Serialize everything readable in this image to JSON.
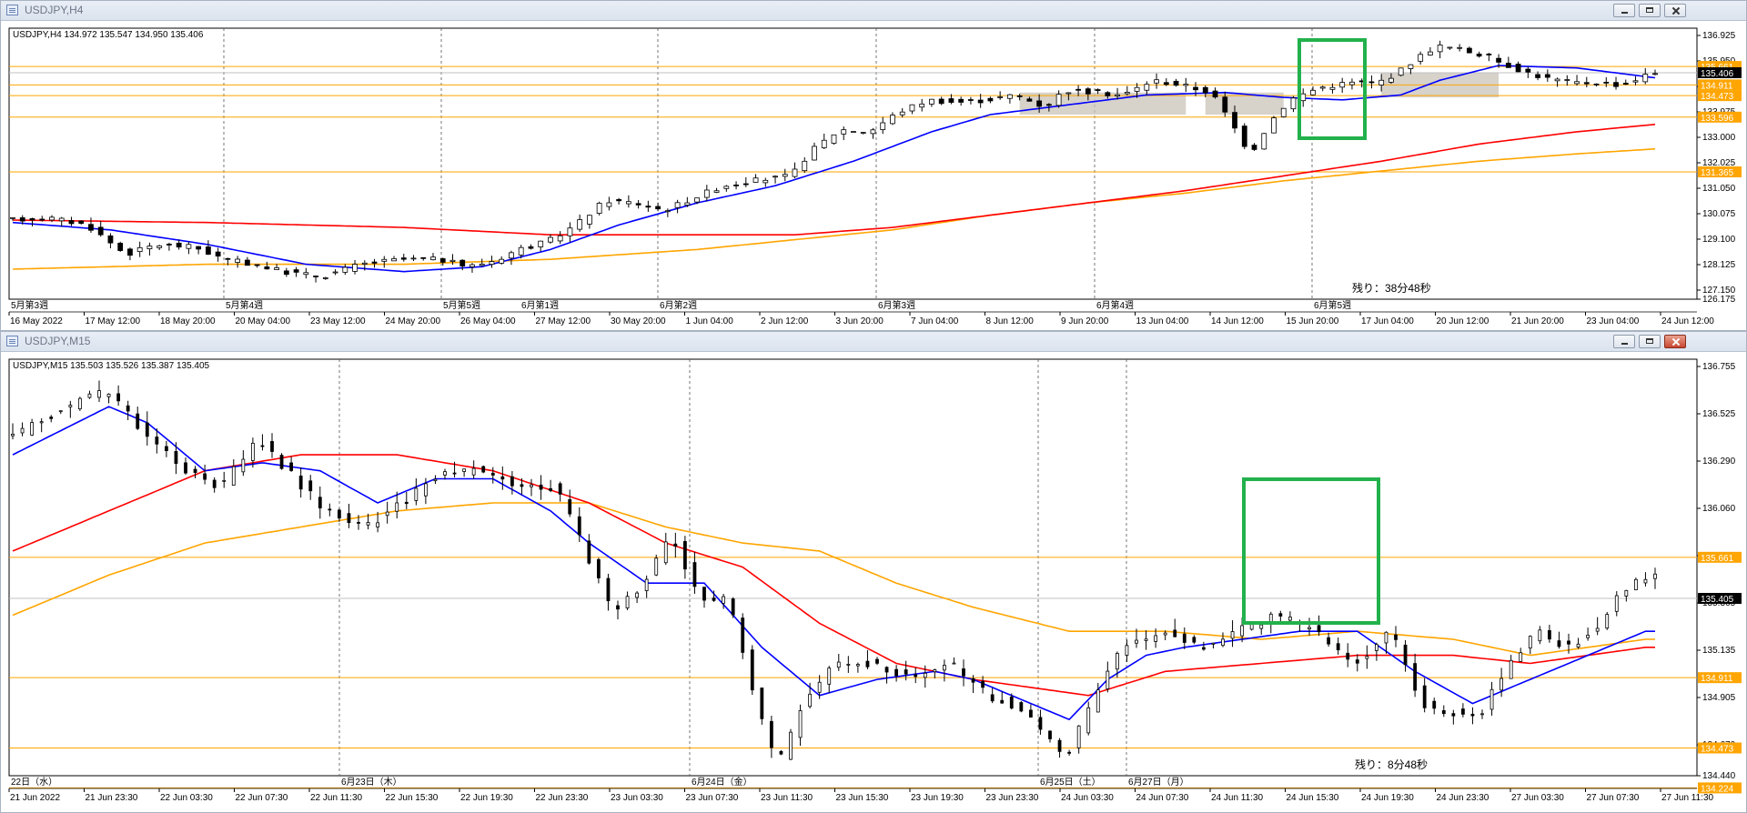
{
  "windows": [
    {
      "title": "USDJPY,H4",
      "info": "USDJPY,H4  134.972 135.547 134.950 135.406",
      "timer": "残り：38分48秒",
      "y_ticks": [
        "136.925",
        "135.950",
        "134.975",
        "133.975",
        "133.000",
        "132.025",
        "131.050",
        "130.075",
        "129.100",
        "128.125",
        "127.150",
        "126.175"
      ],
      "price_tags": [
        {
          "label": "135.661",
          "color": "#ffa500"
        },
        {
          "label": "135.406",
          "color": "#000000"
        },
        {
          "label": "134.911",
          "color": "#ffa500"
        },
        {
          "label": "134.473",
          "color": "#ffa500"
        },
        {
          "label": "133.596",
          "color": "#ffa500"
        },
        {
          "label": "131.365",
          "color": "#ffa500"
        }
      ],
      "week_labels": [
        "5月第3週",
        "5月第4週",
        "5月第5週",
        "6月第1週",
        "6月第2週",
        "6月第3週",
        "6月第4週",
        "6月第5週"
      ],
      "time_labels": [
        "16 May 2022",
        "17 May 12:00",
        "18 May 20:00",
        "20 May 04:00",
        "23 May 12:00",
        "24 May 20:00",
        "26 May 04:00",
        "27 May 12:00",
        "30 May 20:00",
        "1 Jun 04:00",
        "2 Jun 12:00",
        "3 Jun 20:00",
        "7 Jun 04:00",
        "8 Jun 12:00",
        "9 Jun 20:00",
        "13 Jun 04:00",
        "14 Jun 12:00",
        "15 Jun 20:00",
        "17 Jun 04:00",
        "20 Jun 12:00",
        "21 Jun 20:00",
        "23 Jun 04:00",
        "24 Jun 12:00"
      ]
    },
    {
      "title": "USDJPY,M15",
      "info": "USDJPY,M15  135.503 135.526 135.387 135.405",
      "timer": "残り：8分48秒",
      "y_ticks": [
        "136.755",
        "136.525",
        "136.290",
        "136.060",
        "135.595",
        "135.365",
        "135.135",
        "134.905",
        "134.670",
        "134.440"
      ],
      "price_tags": [
        {
          "label": "135.661",
          "color": "#ffa500"
        },
        {
          "label": "135.405",
          "color": "#000000"
        },
        {
          "label": "134.911",
          "color": "#ffa500"
        },
        {
          "label": "134.473",
          "color": "#ffa500"
        },
        {
          "label": "134.224",
          "color": "#ffa500"
        }
      ],
      "day_labels": [
        "22日（水）",
        "6月23日（木）",
        "6月24日（金）",
        "6月25日（土）",
        "6月27日（月）"
      ],
      "time_labels": [
        "21 Jun 2022",
        "21 Jun 23:30",
        "22 Jun 03:30",
        "22 Jun 07:30",
        "22 Jun 11:30",
        "22 Jun 15:30",
        "22 Jun 19:30",
        "22 Jun 23:30",
        "23 Jun 03:30",
        "23 Jun 07:30",
        "23 Jun 11:30",
        "23 Jun 15:30",
        "23 Jun 19:30",
        "23 Jun 23:30",
        "24 Jun 03:30",
        "24 Jun 07:30",
        "24 Jun 11:30",
        "24 Jun 15:30",
        "24 Jun 19:30",
        "24 Jun 23:30",
        "27 Jun 03:30",
        "27 Jun 07:30",
        "27 Jun 11:30"
      ]
    }
  ],
  "chart_data": [
    {
      "type": "candlestick",
      "symbol": "USDJPY",
      "timeframe": "H4",
      "last": {
        "open": 134.972,
        "high": 135.547,
        "low": 134.95,
        "close": 135.406
      },
      "ylim": [
        126.175,
        136.925
      ],
      "horizontal_levels": [
        135.661,
        134.911,
        134.473,
        133.596,
        131.365
      ],
      "series": [
        {
          "name": "price",
          "color": "#000000"
        },
        {
          "name": "ma-blue",
          "color": "#0000ff"
        },
        {
          "name": "ma-red",
          "color": "#ff0000"
        },
        {
          "name": "ma-orange",
          "color": "#ffa500"
        }
      ],
      "price_path": [
        [
          0,
          129.4
        ],
        [
          4,
          129.5
        ],
        [
          8,
          129.2
        ],
        [
          12,
          128.0
        ],
        [
          15,
          128.4
        ],
        [
          19,
          128.3
        ],
        [
          22,
          127.8
        ],
        [
          25,
          127.6
        ],
        [
          28,
          127.3
        ],
        [
          32,
          127.1
        ],
        [
          36,
          127.6
        ],
        [
          40,
          127.8
        ],
        [
          44,
          127.8
        ],
        [
          47,
          127.5
        ],
        [
          50,
          127.8
        ],
        [
          52,
          128.2
        ],
        [
          55,
          128.5
        ],
        [
          58,
          129.2
        ],
        [
          61,
          130.2
        ],
        [
          64,
          130.1
        ],
        [
          67,
          129.8
        ],
        [
          70,
          130.3
        ],
        [
          73,
          130.8
        ],
        [
          76,
          131.0
        ],
        [
          80,
          131.2
        ],
        [
          82,
          132.2
        ],
        [
          85,
          133.1
        ],
        [
          88,
          133.0
        ],
        [
          91,
          133.8
        ],
        [
          94,
          134.3
        ],
        [
          97,
          134.2
        ],
        [
          100,
          134.3
        ],
        [
          103,
          134.5
        ],
        [
          106,
          134.0
        ],
        [
          108,
          134.7
        ],
        [
          111,
          134.6
        ],
        [
          114,
          134.5
        ],
        [
          117,
          135.1
        ],
        [
          120,
          134.9
        ],
        [
          123,
          134.6
        ],
        [
          125,
          133.4
        ],
        [
          127,
          132.1
        ],
        [
          129,
          133.4
        ],
        [
          131,
          134.3
        ],
        [
          134,
          134.8
        ],
        [
          137,
          135.0
        ],
        [
          140,
          135.0
        ],
        [
          142,
          135.4
        ],
        [
          144,
          136.0
        ],
        [
          146,
          136.5
        ],
        [
          148,
          136.4
        ],
        [
          151,
          136.1
        ],
        [
          154,
          135.6
        ],
        [
          157,
          135.2
        ],
        [
          160,
          135.0
        ],
        [
          163,
          135.0
        ],
        [
          165,
          134.9
        ],
        [
          168,
          135.4
        ]
      ],
      "ma_blue": [
        [
          0,
          129.3
        ],
        [
          10,
          129.0
        ],
        [
          20,
          128.4
        ],
        [
          30,
          127.6
        ],
        [
          40,
          127.3
        ],
        [
          48,
          127.5
        ],
        [
          55,
          128.2
        ],
        [
          62,
          129.2
        ],
        [
          70,
          130.1
        ],
        [
          78,
          130.8
        ],
        [
          86,
          131.8
        ],
        [
          94,
          133.0
        ],
        [
          100,
          133.7
        ],
        [
          108,
          134.1
        ],
        [
          116,
          134.5
        ],
        [
          124,
          134.6
        ],
        [
          130,
          134.4
        ],
        [
          136,
          134.3
        ],
        [
          142,
          134.5
        ],
        [
          146,
          135.1
        ],
        [
          152,
          135.7
        ],
        [
          160,
          135.6
        ],
        [
          168,
          135.2
        ]
      ],
      "ma_red": [
        [
          0,
          129.4
        ],
        [
          20,
          129.3
        ],
        [
          40,
          129.1
        ],
        [
          55,
          128.8
        ],
        [
          70,
          128.8
        ],
        [
          80,
          128.8
        ],
        [
          90,
          129.1
        ],
        [
          100,
          129.6
        ],
        [
          110,
          130.1
        ],
        [
          120,
          130.6
        ],
        [
          130,
          131.2
        ],
        [
          140,
          131.8
        ],
        [
          150,
          132.5
        ],
        [
          160,
          133.0
        ],
        [
          168,
          133.3
        ]
      ],
      "ma_orange": [
        [
          0,
          127.4
        ],
        [
          20,
          127.6
        ],
        [
          40,
          127.6
        ],
        [
          55,
          127.8
        ],
        [
          70,
          128.2
        ],
        [
          80,
          128.6
        ],
        [
          90,
          129.0
        ],
        [
          100,
          129.6
        ],
        [
          110,
          130.1
        ],
        [
          120,
          130.5
        ],
        [
          130,
          131.0
        ],
        [
          140,
          131.4
        ],
        [
          150,
          131.8
        ],
        [
          160,
          132.1
        ],
        [
          168,
          132.3
        ]
      ]
    },
    {
      "type": "candlestick",
      "symbol": "USDJPY",
      "timeframe": "M15",
      "last": {
        "open": 135.503,
        "high": 135.526,
        "low": 135.387,
        "close": 135.405
      },
      "ylim": [
        134.3,
        136.85
      ],
      "horizontal_levels": [
        135.661,
        134.911,
        134.473,
        134.224
      ],
      "series": [
        {
          "name": "price",
          "color": "#000000"
        },
        {
          "name": "ma-blue",
          "color": "#0000ff"
        },
        {
          "name": "ma-red",
          "color": "#ff0000"
        },
        {
          "name": "ma-orange",
          "color": "#ffa500"
        }
      ],
      "price_path": [
        [
          0,
          136.4
        ],
        [
          6,
          136.6
        ],
        [
          10,
          136.7
        ],
        [
          14,
          136.45
        ],
        [
          18,
          136.2
        ],
        [
          22,
          136.1
        ],
        [
          26,
          136.4
        ],
        [
          29,
          136.2
        ],
        [
          33,
          135.95
        ],
        [
          37,
          135.85
        ],
        [
          41,
          136.0
        ],
        [
          45,
          136.2
        ],
        [
          49,
          136.2
        ],
        [
          53,
          136.1
        ],
        [
          57,
          136.1
        ],
        [
          60,
          135.7
        ],
        [
          63,
          135.3
        ],
        [
          66,
          135.5
        ],
        [
          69,
          135.8
        ],
        [
          72,
          135.4
        ],
        [
          75,
          135.4
        ],
        [
          78,
          134.7
        ],
        [
          80,
          134.35
        ],
        [
          83,
          134.8
        ],
        [
          86,
          135.0
        ],
        [
          90,
          135.0
        ],
        [
          94,
          134.9
        ],
        [
          98,
          135.0
        ],
        [
          102,
          134.8
        ],
        [
          106,
          134.7
        ],
        [
          110,
          134.4
        ],
        [
          113,
          134.8
        ],
        [
          116,
          135.1
        ],
        [
          120,
          135.2
        ],
        [
          124,
          135.1
        ],
        [
          128,
          135.2
        ],
        [
          132,
          135.3
        ],
        [
          136,
          135.2
        ],
        [
          140,
          135.0
        ],
        [
          144,
          135.2
        ],
        [
          147,
          134.75
        ],
        [
          150,
          134.7
        ],
        [
          153,
          134.65
        ],
        [
          156,
          135.0
        ],
        [
          159,
          135.2
        ],
        [
          162,
          135.1
        ],
        [
          165,
          135.2
        ],
        [
          168,
          135.45
        ],
        [
          171,
          135.55
        ]
      ],
      "ma_blue": [
        [
          0,
          136.3
        ],
        [
          10,
          136.6
        ],
        [
          14,
          136.5
        ],
        [
          20,
          136.2
        ],
        [
          26,
          136.25
        ],
        [
          32,
          136.2
        ],
        [
          38,
          136.0
        ],
        [
          44,
          136.15
        ],
        [
          50,
          136.15
        ],
        [
          56,
          135.95
        ],
        [
          60,
          135.75
        ],
        [
          66,
          135.5
        ],
        [
          72,
          135.5
        ],
        [
          78,
          135.1
        ],
        [
          84,
          134.8
        ],
        [
          90,
          134.9
        ],
        [
          96,
          134.95
        ],
        [
          100,
          134.9
        ],
        [
          104,
          134.8
        ],
        [
          110,
          134.65
        ],
        [
          114,
          134.9
        ],
        [
          118,
          135.05
        ],
        [
          122,
          135.1
        ],
        [
          128,
          135.15
        ],
        [
          134,
          135.2
        ],
        [
          140,
          135.2
        ],
        [
          146,
          134.95
        ],
        [
          152,
          134.75
        ],
        [
          158,
          134.9
        ],
        [
          164,
          135.05
        ],
        [
          170,
          135.2
        ]
      ],
      "ma_red": [
        [
          0,
          135.7
        ],
        [
          10,
          135.95
        ],
        [
          20,
          136.2
        ],
        [
          30,
          136.3
        ],
        [
          40,
          136.3
        ],
        [
          50,
          136.2
        ],
        [
          60,
          136.0
        ],
        [
          68,
          135.75
        ],
        [
          76,
          135.6
        ],
        [
          84,
          135.25
        ],
        [
          92,
          135.0
        ],
        [
          100,
          134.9
        ],
        [
          106,
          134.85
        ],
        [
          112,
          134.8
        ],
        [
          120,
          134.95
        ],
        [
          130,
          135.0
        ],
        [
          140,
          135.05
        ],
        [
          150,
          135.05
        ],
        [
          158,
          135.0
        ],
        [
          164,
          135.05
        ],
        [
          170,
          135.1
        ]
      ],
      "ma_orange": [
        [
          0,
          135.3
        ],
        [
          10,
          135.55
        ],
        [
          20,
          135.75
        ],
        [
          30,
          135.85
        ],
        [
          40,
          135.95
        ],
        [
          50,
          136.0
        ],
        [
          60,
          136.0
        ],
        [
          68,
          135.85
        ],
        [
          76,
          135.75
        ],
        [
          84,
          135.7
        ],
        [
          92,
          135.5
        ],
        [
          100,
          135.35
        ],
        [
          110,
          135.2
        ],
        [
          120,
          135.2
        ],
        [
          130,
          135.15
        ],
        [
          140,
          135.2
        ],
        [
          150,
          135.15
        ],
        [
          158,
          135.05
        ],
        [
          164,
          135.1
        ],
        [
          170,
          135.15
        ]
      ]
    }
  ]
}
